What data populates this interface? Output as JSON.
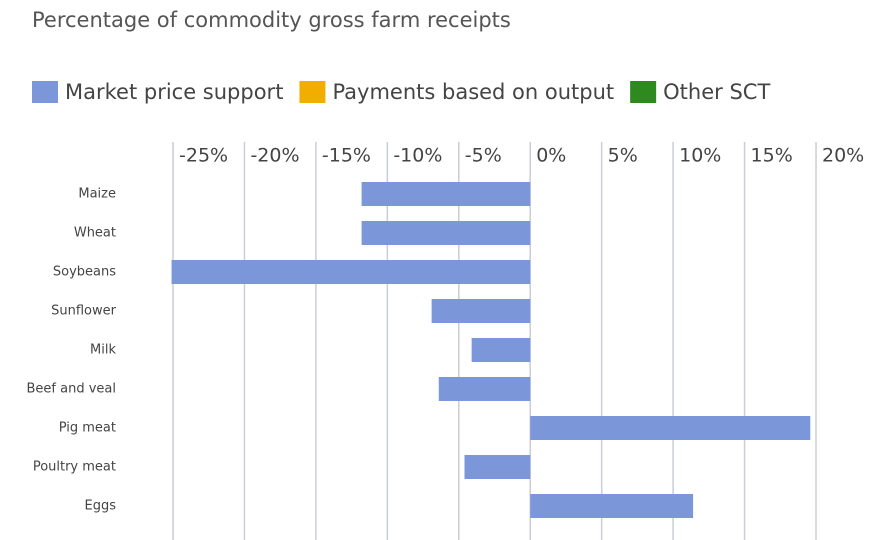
{
  "chart_data": {
    "type": "bar",
    "orientation": "horizontal",
    "stacked": true,
    "title": "Percentage of commodity gross farm receipts",
    "categories": [
      "Maize",
      "Wheat",
      "Soybeans",
      "Sunflower",
      "Milk",
      "Beef and veal",
      "Pig meat",
      "Poultry meat",
      "Eggs"
    ],
    "series": [
      {
        "name": "Market price support",
        "color": "#7b96d9",
        "values": [
          -11.8,
          -11.8,
          -25.1,
          -6.9,
          -4.1,
          -6.4,
          19.6,
          -4.6,
          11.4
        ]
      },
      {
        "name": "Payments based on output",
        "color": "#f2ae00",
        "values": [
          0,
          0,
          0,
          0,
          0,
          0,
          0,
          0,
          0
        ]
      },
      {
        "name": "Other SCT",
        "color": "#2e8a1e",
        "values": [
          0,
          0,
          0,
          0,
          0,
          0,
          0,
          0,
          0
        ]
      }
    ],
    "xlim": [
      -25,
      20
    ],
    "xticks": [
      {
        "value": -25,
        "label": "-25%"
      },
      {
        "value": -20,
        "label": "-20%"
      },
      {
        "value": -15,
        "label": "-15%"
      },
      {
        "value": -10,
        "label": "-10%"
      },
      {
        "value": -5,
        "label": "-5%"
      },
      {
        "value": 0,
        "label": "0%"
      },
      {
        "value": 5,
        "label": "5%"
      },
      {
        "value": 10,
        "label": "10%"
      },
      {
        "value": 15,
        "label": "15%"
      },
      {
        "value": 20,
        "label": "20%"
      }
    ],
    "grid": true,
    "legend": "top"
  }
}
